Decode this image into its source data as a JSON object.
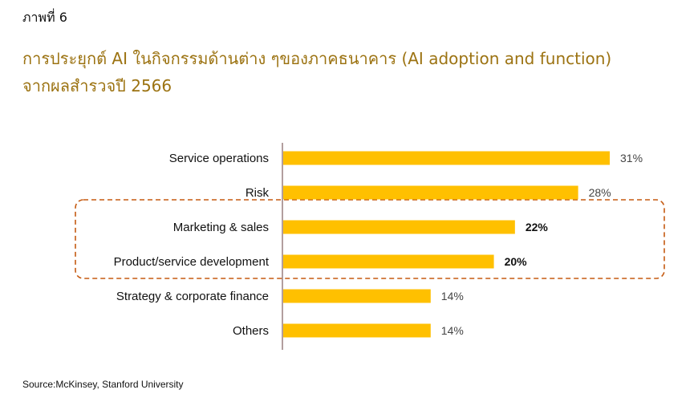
{
  "figure_label": "ภาพที่ 6",
  "title_line1": "การประยุกต์ AI ในกิจกรรมด้านต่าง ๆของภาคธนาคาร (AI adoption and function)",
  "title_line2": "จากผลสำรวจปี 2566",
  "source": "Source:McKinsey, Stanford University",
  "colors": {
    "bar": "#FFC000",
    "title": "#9C7312",
    "highlight_border": "#C55A11",
    "axis": "#7F5F5F"
  },
  "chart_data": {
    "type": "bar",
    "orientation": "horizontal",
    "title": "",
    "xlabel": "",
    "ylabel": "",
    "grid": false,
    "legend": "none",
    "xlim": [
      0,
      31
    ],
    "categories": [
      "Service operations",
      "Risk",
      "Marketing & sales",
      "Product/service development",
      "Strategy & corporate finance",
      "Others"
    ],
    "values": [
      31,
      28,
      22,
      20,
      14,
      14
    ],
    "labels": [
      "31%",
      "28%",
      "22%",
      "20%",
      "14%",
      "14%"
    ],
    "bold_labels": [
      false,
      false,
      true,
      true,
      false,
      false
    ],
    "highlighted_categories": [
      "Marketing & sales",
      "Product/service development"
    ]
  }
}
